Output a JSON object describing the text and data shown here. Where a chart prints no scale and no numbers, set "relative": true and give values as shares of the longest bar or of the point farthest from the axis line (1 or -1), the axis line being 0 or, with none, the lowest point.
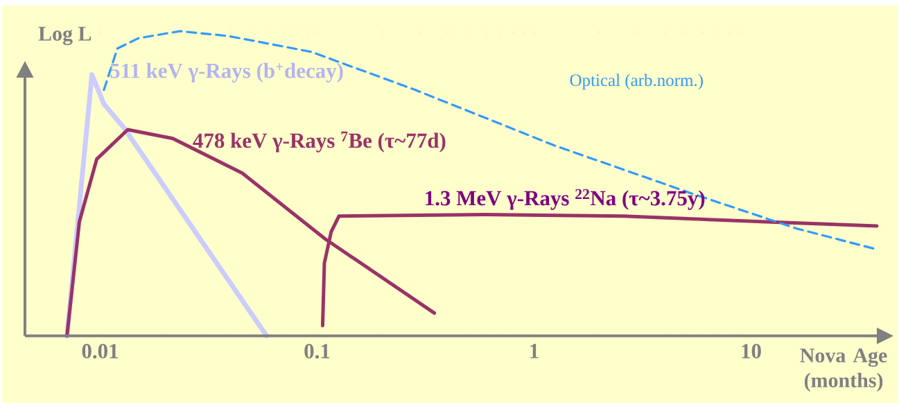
{
  "chart_data": {
    "type": "line",
    "relative": true,
    "log": "x",
    "xlabel": "Nova Age (months)",
    "ylabel": "Log L",
    "xlim": [
      0.0045,
      38
    ],
    "xticks": [
      0.01,
      0.1,
      1,
      10
    ],
    "series": [
      {
        "name": "511 keV γ-Rays (b$^{+}$decay)",
        "color": "#ccccff",
        "x": [
          0.00703,
          0.00916,
          0.0104,
          0.0129,
          0.0585
        ],
        "values": [
          0,
          0.857,
          0.761,
          0.682,
          0
        ]
      },
      {
        "name": "478 keV γ-Rays $^{7}$Be (τ~77d)",
        "color": "#993366",
        "x": [
          0.00703,
          0.00802,
          0.00964,
          0.0134,
          0.0216,
          0.0452,
          0.109,
          0.347
        ],
        "values": [
          0,
          0.375,
          0.58,
          0.677,
          0.648,
          0.534,
          0.318,
          0.075
        ]
      },
      {
        "name": "1.3 MeV γ-Rays $^{22}$Na (τ~3.75y)",
        "color": "#993366",
        "x": [
          0.106,
          0.108,
          0.116,
          0.126,
          0.593,
          2.58,
          11.2,
          38
        ],
        "values": [
          0.034,
          0.239,
          0.341,
          0.393,
          0.398,
          0.393,
          0.375,
          0.361
        ]
      },
      {
        "name": "Optical (arb.norm.)",
        "color": "#3399ff",
        "line_style": "dashed",
        "x": [
          0.0104,
          0.012,
          0.015,
          0.0233,
          0.039,
          0.0942,
          0.284,
          1.24,
          5.4,
          16.3,
          38
        ],
        "values": [
          0.807,
          0.943,
          0.977,
          1.0,
          0.984,
          0.932,
          0.807,
          0.625,
          0.466,
          0.352,
          0.284
        ]
      }
    ]
  }
}
